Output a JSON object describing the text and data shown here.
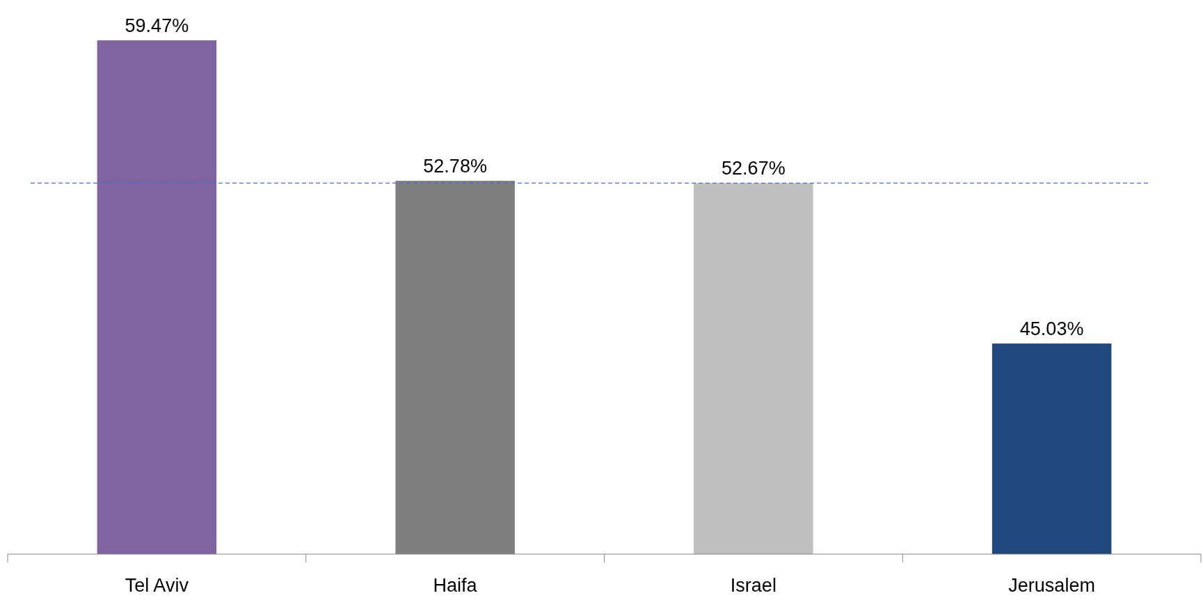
{
  "chart_data": {
    "type": "bar",
    "categories": [
      "Tel Aviv",
      "Haifa",
      "Israel",
      "Jerusalem"
    ],
    "values": [
      59.47,
      52.78,
      52.67,
      45.03
    ],
    "colors": [
      "#8064a2",
      "#7f7f7f",
      "#bfbfbf",
      "#1f497d"
    ],
    "value_labels": [
      "59.47%",
      "52.78%",
      "52.67%",
      "45.03%"
    ],
    "ylim": [
      35,
      59.47
    ],
    "tick_labels": "x",
    "ref_lines": [
      {
        "axis": "y",
        "value": 52.67,
        "color": "#4472c4",
        "line_style": "dashed"
      }
    ]
  }
}
